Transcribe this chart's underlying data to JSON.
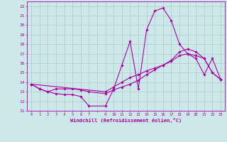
{
  "xlabel": "Windchill (Refroidissement éolien,°C)",
  "xlim": [
    -0.5,
    23.5
  ],
  "ylim": [
    11,
    22.5
  ],
  "yticks": [
    11,
    12,
    13,
    14,
    15,
    16,
    17,
    18,
    19,
    20,
    21,
    22
  ],
  "xtick_labels": [
    "0",
    "1",
    "2",
    "3",
    "4",
    "5",
    "6",
    "7",
    "",
    "9",
    "10",
    "11",
    "12",
    "13",
    "14",
    "15",
    "16",
    "17",
    "18",
    "19",
    "20",
    "21",
    "22",
    "23"
  ],
  "xtick_positions": [
    0,
    1,
    2,
    3,
    4,
    5,
    6,
    7,
    8,
    9,
    10,
    11,
    12,
    13,
    14,
    15,
    16,
    17,
    18,
    19,
    20,
    21,
    22,
    23
  ],
  "bg_color": "#cce8e8",
  "grid_color": "#aacccc",
  "line_color": "#aa00aa",
  "tick_color": "#aa00aa",
  "lines": [
    {
      "x": [
        0,
        1,
        2,
        3,
        4,
        5,
        6,
        7,
        9,
        10,
        11,
        12,
        13,
        14,
        15,
        16,
        17,
        18,
        19,
        20,
        21,
        22,
        23
      ],
      "y": [
        13.8,
        13.3,
        13.0,
        12.8,
        12.7,
        12.7,
        12.5,
        11.5,
        11.5,
        13.3,
        15.8,
        18.3,
        13.3,
        19.5,
        21.5,
        21.8,
        20.5,
        18.0,
        17.0,
        16.5,
        14.8,
        16.5,
        14.3
      ]
    },
    {
      "x": [
        0,
        1,
        2,
        3,
        4,
        5,
        6,
        7,
        9,
        10,
        11,
        12,
        13,
        14,
        15,
        16,
        17,
        18,
        19,
        20,
        21,
        22,
        23
      ],
      "y": [
        13.8,
        13.3,
        13.0,
        13.3,
        13.3,
        13.3,
        13.2,
        13.0,
        12.8,
        13.2,
        13.5,
        13.8,
        14.2,
        14.8,
        15.3,
        15.8,
        16.3,
        17.2,
        17.5,
        17.2,
        16.5,
        15.0,
        14.3
      ]
    },
    {
      "x": [
        0,
        9,
        10,
        11,
        12,
        13,
        14,
        15,
        16,
        17,
        18,
        19,
        20,
        21,
        22,
        23
      ],
      "y": [
        13.8,
        13.0,
        13.5,
        14.0,
        14.5,
        14.8,
        15.2,
        15.5,
        15.8,
        16.2,
        16.8,
        17.0,
        16.8,
        16.5,
        15.0,
        14.3
      ]
    }
  ]
}
